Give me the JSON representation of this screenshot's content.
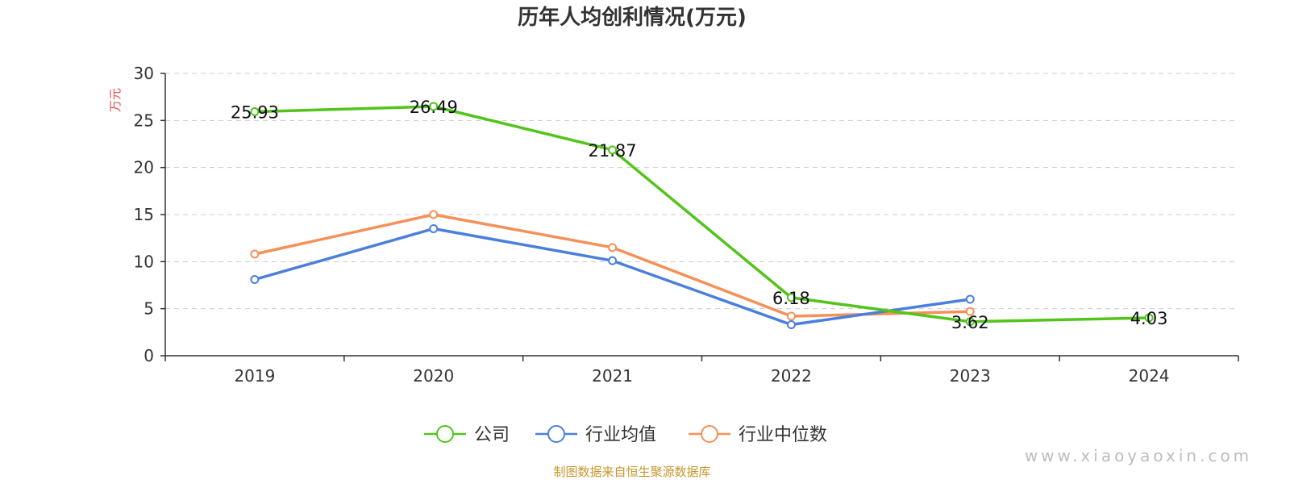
{
  "chart_data": {
    "type": "line",
    "title": "历年人均创利情况(万元)",
    "ylabel": "万元",
    "xlabel": "",
    "categories": [
      "2019",
      "2020",
      "2021",
      "2022",
      "2023",
      "2024"
    ],
    "ylim": [
      0,
      30
    ],
    "yticks": [
      0,
      5,
      10,
      15,
      20,
      25,
      30
    ],
    "grid": true,
    "legend_position": "bottom-center",
    "series": [
      {
        "name": "公司",
        "color": "#52c41a",
        "values": [
          25.93,
          26.49,
          21.87,
          6.18,
          3.62,
          4.03
        ],
        "labels": [
          "25.93",
          "26.49",
          "21.87",
          "6.18",
          "3.62",
          "4.03"
        ]
      },
      {
        "name": "行业均值",
        "color": "#4a7fdc",
        "values": [
          8.1,
          13.5,
          10.1,
          3.3,
          6.0,
          null
        ]
      },
      {
        "name": "行业中位数",
        "color": "#f59058",
        "values": [
          10.8,
          15.0,
          11.5,
          4.2,
          4.7,
          null
        ]
      }
    ]
  },
  "source_note": "制图数据来自恒生聚源数据库",
  "watermark": "www.xiaoyaoxin.com"
}
